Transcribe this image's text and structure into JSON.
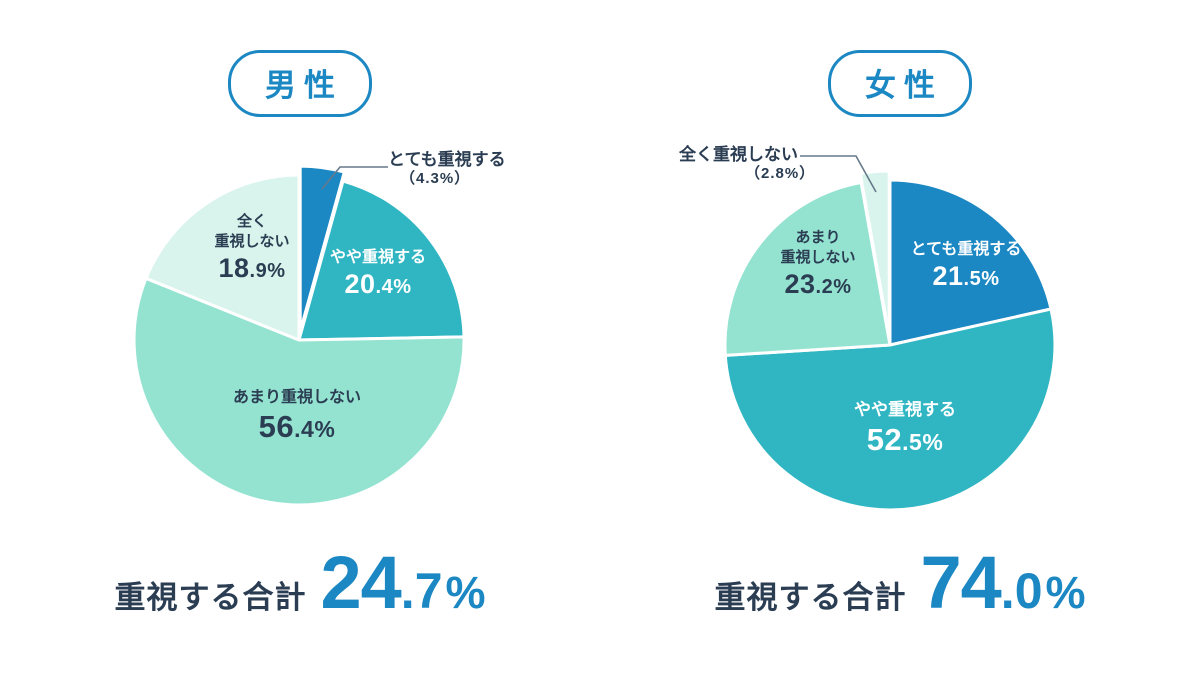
{
  "colors": {
    "blue": "#1b87c3",
    "teal": "#30b6c3",
    "mint": "#94e3d1",
    "light_mint": "#d8f4ec",
    "navy": "#2b3d52",
    "white": "#ffffff",
    "leader_line": "#66798a"
  },
  "chart_data": [
    {
      "type": "pie",
      "group_label": "男性",
      "unit": "%",
      "start_angle_deg": 0,
      "direction": "clockwise",
      "slices": [
        {
          "label": "とても重視する",
          "value": 4.3,
          "color_key": "blue",
          "exploded": true,
          "label_mode": "callout"
        },
        {
          "label": "やや重視する",
          "value": 20.4,
          "color_key": "teal",
          "exploded": false,
          "label_mode": "inside",
          "text_color": "white"
        },
        {
          "label": "あまり重視しない",
          "value": 56.4,
          "color_key": "mint",
          "exploded": false,
          "label_mode": "inside",
          "text_color": "navy"
        },
        {
          "label": "全く重視しない",
          "value": 18.9,
          "color_key": "light_mint",
          "exploded": false,
          "label_mode": "inside",
          "text_color": "navy"
        }
      ],
      "total": {
        "label": "重視する合計",
        "value": 24.7
      }
    },
    {
      "type": "pie",
      "group_label": "女性",
      "unit": "%",
      "start_angle_deg": 0,
      "direction": "clockwise",
      "slices": [
        {
          "label": "とても重視する",
          "value": 21.5,
          "color_key": "blue",
          "exploded": false,
          "label_mode": "inside",
          "text_color": "white"
        },
        {
          "label": "やや重視する",
          "value": 52.5,
          "color_key": "teal",
          "exploded": false,
          "label_mode": "inside",
          "text_color": "white"
        },
        {
          "label": "あまり重視しない",
          "value": 23.2,
          "color_key": "mint",
          "exploded": false,
          "label_mode": "inside",
          "text_color": "navy"
        },
        {
          "label": "全く重視しない",
          "value": 2.8,
          "color_key": "light_mint",
          "exploded": true,
          "label_mode": "callout"
        }
      ],
      "total": {
        "label": "重視する合計",
        "value": 74.0
      }
    }
  ]
}
